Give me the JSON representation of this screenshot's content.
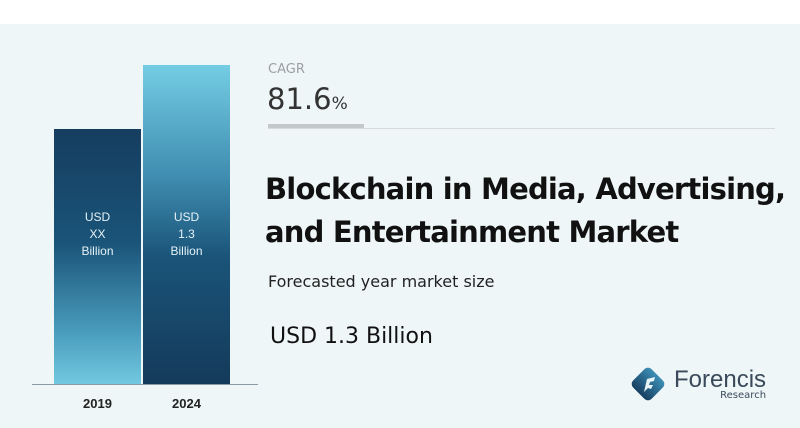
{
  "chart_data": {
    "type": "bar",
    "categories": [
      "2019",
      "2024"
    ],
    "values": [
      1.04,
      1.3
    ],
    "bar_labels": [
      [
        "USD",
        "XX",
        "Billion"
      ],
      [
        "USD",
        "1.3",
        "Billion"
      ]
    ],
    "ylabel": "",
    "xlabel": "",
    "ylim": [
      0,
      1.3
    ],
    "grid": false,
    "colors": [
      "#153d5f",
      "#74cde4"
    ]
  },
  "cagr": {
    "label": "CAGR",
    "value": "81.6",
    "unit": "%"
  },
  "title_lines": [
    "Blockchain in Media, Advertising,",
    "and Entertainment Market"
  ],
  "subtitle": "Forecasted year market size",
  "market_value": "USD 1.3 Billion",
  "logo": {
    "name": "Forencis",
    "sub": "Research"
  }
}
